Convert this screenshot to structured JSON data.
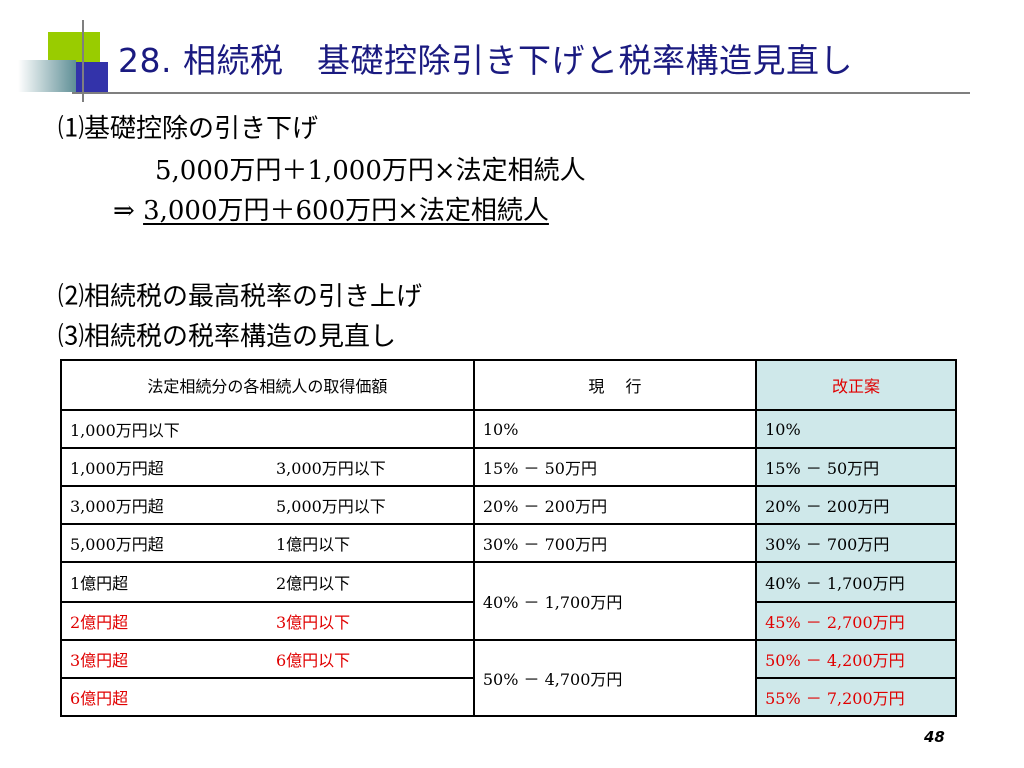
{
  "title": "28. 相続税　基礎控除引き下げと税率構造見直し",
  "colors": {
    "title": "#1a1a80",
    "red": "#e00000",
    "proposal_bg": "#cfe8ea",
    "deco_green": "#99cc00",
    "deco_blue": "#3333aa",
    "deco_teal": "#5f8f96"
  },
  "section1": {
    "heading": "⑴基礎控除の引き下げ",
    "current_formula": "5,000万円＋1,000万円×法定相続人",
    "arrow": "⇒",
    "new_formula": "3,000万円＋600万円×法定相続人"
  },
  "section2": {
    "heading": "⑵相続税の最高税率の引き上げ"
  },
  "section3": {
    "heading": "⑶相続税の税率構造の見直し"
  },
  "table": {
    "headers": [
      "法定相続分の各相続人の取得価額",
      "現　 行",
      "改正案"
    ],
    "rows": [
      {
        "range_low": "1,000万円以下",
        "range_high": "",
        "current": "10%",
        "proposal": "10%"
      },
      {
        "range_low": "1,000万円超",
        "range_high": "3,000万円以下",
        "current": "15% － 50万円",
        "proposal": "15% － 50万円"
      },
      {
        "range_low": "3,000万円超",
        "range_high": "5,000万円以下",
        "current": "20% － 200万円",
        "proposal": "20% － 200万円"
      },
      {
        "range_low": "5,000万円超",
        "range_high": "1億円以下",
        "current": "30% － 700万円",
        "proposal": "30% － 700万円"
      },
      {
        "range_low": "1億円超",
        "range_high": "2億円以下",
        "current": "40% － 1,700万円",
        "proposal": "40% － 1,700万円"
      },
      {
        "range_low": "2億円超",
        "range_high": "3億円以下",
        "current": "",
        "proposal": "45% － 2,700万円"
      },
      {
        "range_low": "3億円超",
        "range_high": "6億円以下",
        "current": "50% － 4,700万円",
        "proposal": "50% － 4,200万円"
      },
      {
        "range_low": "6億円超",
        "range_high": "",
        "current": "",
        "proposal": "55% － 7,200万円"
      }
    ]
  },
  "page_number": "48"
}
